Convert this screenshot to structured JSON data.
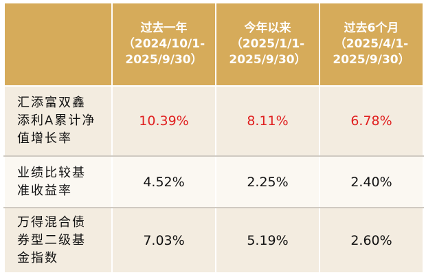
{
  "header": {
    "col1": {
      "line1": "过去一年",
      "line2": "（2024/10/1-",
      "line3": "2025/9/30）"
    },
    "col2": {
      "line1": "今年以来",
      "line2": "（2025/1/1-",
      "line3": "2025/9/30）"
    },
    "col3": {
      "line1": "过去6个月",
      "line2": "（2025/4/1-",
      "line3": "2025/9/30）"
    }
  },
  "rows": [
    {
      "label_lines": [
        "汇添富双鑫",
        "添利A累计净",
        "值增长率"
      ],
      "values": [
        "10.39%",
        "8.11%",
        "6.78%"
      ],
      "highlight": true
    },
    {
      "label_lines": [
        "业绩比较基",
        "准收益率"
      ],
      "values": [
        "4.52%",
        "2.25%",
        "2.40%"
      ],
      "highlight": false
    },
    {
      "label_lines": [
        "万得混合债",
        "券型二级基",
        "金指数"
      ],
      "values": [
        "7.03%",
        "5.19%",
        "2.60%"
      ],
      "highlight": false
    }
  ],
  "colors": {
    "header_bg": "#d6ab5a",
    "row_bg": "#f3ece0",
    "highlight_text": "#e02020"
  }
}
